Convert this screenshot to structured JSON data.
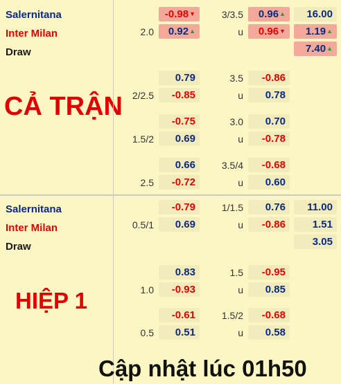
{
  "full_match": {
    "label": "CẢ TRẬN",
    "teams": {
      "home": "Salernitana",
      "away": "Inter Milan",
      "draw": "Draw"
    },
    "main": {
      "home_odds": "-0.98",
      "away_handicap": "2.0",
      "away_odds": "0.92",
      "ou_line": "3/3.5",
      "over_odds": "0.96",
      "under_label": "u",
      "under_odds": "0.96",
      "x12_home": "16.00",
      "x12_away": "1.19",
      "x12_draw": "7.40"
    },
    "alt": [
      {
        "h_top": "0.79",
        "h_line": "2/2.5",
        "h_bottom": "-0.85",
        "ou_line": "3.5",
        "ou_top": "-0.86",
        "ou_sub": "u",
        "ou_bottom": "0.78"
      },
      {
        "h_top": "-0.75",
        "h_line": "1.5/2",
        "h_bottom": "0.69",
        "ou_line": "3.0",
        "ou_top": "0.70",
        "ou_sub": "u",
        "ou_bottom": "-0.78"
      },
      {
        "h_top": "0.66",
        "h_line": "2.5",
        "h_bottom": "-0.72",
        "ou_line": "3.5/4",
        "ou_top": "-0.68",
        "ou_sub": "u",
        "ou_bottom": "0.60"
      }
    ]
  },
  "first_half": {
    "label": "HIỆP 1",
    "teams": {
      "home": "Salernitana",
      "away": "Inter Milan",
      "draw": "Draw"
    },
    "main": {
      "home_odds": "-0.79",
      "away_handicap": "0.5/1",
      "away_odds": "0.69",
      "ou_line": "1/1.5",
      "over_odds": "0.76",
      "under_label": "u",
      "under_odds": "-0.86",
      "x12_home": "11.00",
      "x12_away": "1.51",
      "x12_draw": "3.05"
    },
    "alt": [
      {
        "h_top": "0.83",
        "h_line": "1.0",
        "h_bottom": "-0.93",
        "ou_line": "1.5",
        "ou_top": "-0.95",
        "ou_sub": "u",
        "ou_bottom": "0.85"
      },
      {
        "h_top": "-0.61",
        "h_line": "0.5",
        "h_bottom": "0.51",
        "ou_line": "1.5/2",
        "ou_top": "-0.68",
        "ou_sub": "u",
        "ou_bottom": "0.58"
      }
    ]
  },
  "footer": "Cập nhật lúc 01h50"
}
